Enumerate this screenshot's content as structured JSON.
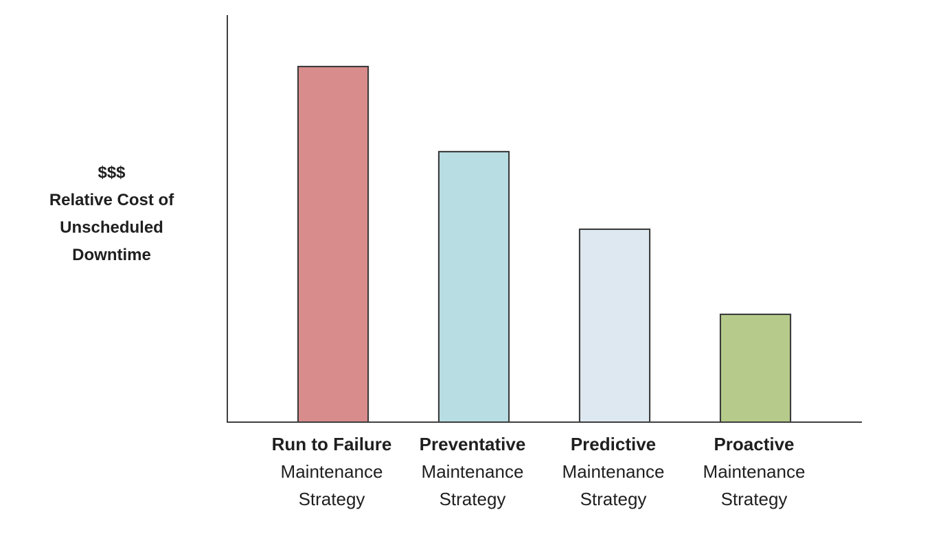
{
  "chart_data": {
    "type": "bar",
    "title": "",
    "ylabel_lines": [
      "$$$",
      "Relative Cost of",
      "Unscheduled",
      "Downtime"
    ],
    "categories": [
      [
        "Run to Failure",
        "Maintenance",
        "Strategy"
      ],
      [
        "Preventative",
        "Maintenance",
        "Strategy"
      ],
      [
        "Predictive",
        "Maintenance",
        "Strategy"
      ],
      [
        "Proactive",
        "Maintenance",
        "Strategy"
      ]
    ],
    "values": [
      100,
      76,
      54,
      30
    ],
    "ylim": [
      0,
      100
    ],
    "xlabel": "",
    "ylabel": "$$$ Relative Cost of Unscheduled Downtime",
    "grid": false,
    "legend": false,
    "bar_colors": [
      "#d98c8c",
      "#b8dde3",
      "#dee8f1",
      "#b6cb8b"
    ],
    "bar_border_color": "#3b3b3b",
    "axis_color": "#3f3f3f",
    "text_color": "#1f1f1f"
  }
}
